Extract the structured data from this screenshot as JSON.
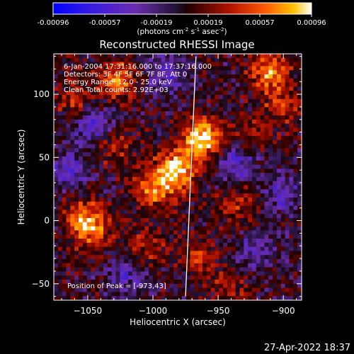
{
  "chart_data": {
    "type": "heatmap",
    "title": "Reconstructed RHESSI Image",
    "xlabel": "Heliocentric X (arcsec)",
    "ylabel": "Heliocentric Y (arcsec)",
    "colorbar": {
      "ticks": [
        "-0.00096",
        "-0.00057",
        "-0.00019",
        "0.00019",
        "0.00057",
        "0.00096"
      ],
      "range": [
        -0.00096,
        0.00096
      ],
      "unit_label_parts": [
        "(photons cm",
        "-2",
        " s",
        "-1",
        " asec",
        "-2",
        ")"
      ]
    },
    "xlim": [
      -1076,
      -886
    ],
    "ylim": [
      -63,
      132
    ],
    "x_ticks": [
      {
        "value": -1050,
        "label": "−1050"
      },
      {
        "value": -1000,
        "label": "−1000"
      },
      {
        "value": -950,
        "label": "−950"
      },
      {
        "value": -900,
        "label": "−900"
      }
    ],
    "y_ticks": [
      {
        "value": 100,
        "label": "100"
      },
      {
        "value": 50,
        "label": "50"
      },
      {
        "value": 0,
        "label": "0"
      },
      {
        "value": -50,
        "label": "−50"
      }
    ],
    "limb_line": [
      [
        -967,
        130
      ],
      [
        -975,
        -60
      ]
    ],
    "info_lines": [
      "6-Jan-2004 17:31:16.000 to 17:37:16.000",
      "Detectors: 3F 4F 5F 6F 7F 8F, Att 0",
      "Energy Range: 12.0 - 25.0 keV",
      "Clean    Total counts: 2.92E+03"
    ],
    "peak_label": "Position of Peak = [-973,43]",
    "peak": [
      -973,
      43
    ],
    "blobs": [
      {
        "x": -982,
        "y": 40,
        "amp": 0.0009
      },
      {
        "x": -962,
        "y": 65,
        "amp": 0.00095
      },
      {
        "x": -1000,
        "y": 25,
        "amp": 0.0006
      },
      {
        "x": -1028,
        "y": 112,
        "amp": 0.00065
      },
      {
        "x": -1053,
        "y": 2,
        "amp": 0.0006
      },
      {
        "x": -1045,
        "y": -10,
        "amp": 0.0004
      },
      {
        "x": -910,
        "y": 118,
        "amp": 0.0007
      },
      {
        "x": -900,
        "y": 90,
        "amp": 0.0004
      },
      {
        "x": -935,
        "y": 15,
        "amp": 0.0004
      },
      {
        "x": -1030,
        "y": 60,
        "amp": 0.00035
      },
      {
        "x": -1005,
        "y": -20,
        "amp": 0.00035
      },
      {
        "x": -965,
        "y": -30,
        "amp": 0.0004
      },
      {
        "x": -940,
        "y": -55,
        "amp": 0.0003
      },
      {
        "x": -1060,
        "y": 95,
        "amp": 0.00035
      },
      {
        "x": -925,
        "y": 70,
        "amp": 0.0003
      },
      {
        "x": -1045,
        "y": 75,
        "amp": -0.0005
      },
      {
        "x": -1065,
        "y": 40,
        "amp": -0.0004
      },
      {
        "x": -935,
        "y": 45,
        "amp": -0.0005
      },
      {
        "x": -900,
        "y": 20,
        "amp": -0.0004
      },
      {
        "x": -990,
        "y": 115,
        "amp": -0.0004
      },
      {
        "x": -920,
        "y": -25,
        "amp": -0.00035
      },
      {
        "x": -1020,
        "y": -45,
        "amp": -0.00035
      }
    ]
  },
  "timestamp": "27-Apr-2022 18:37"
}
